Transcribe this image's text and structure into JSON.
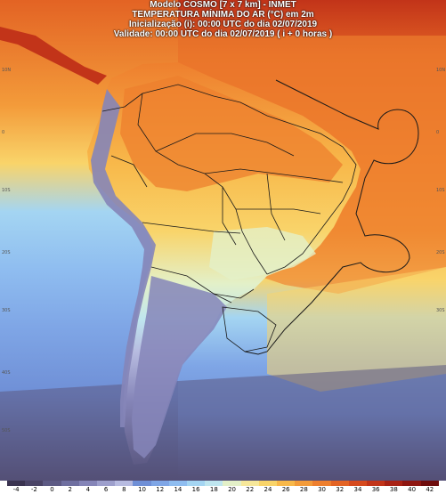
{
  "header": {
    "line1": "Modelo COSMO [7 x 7 km] - INMET",
    "line2": "TEMPERATURA MÍNIMA DO AR (°C) em 2m",
    "line3": "Inicialização (i): 00:00 UTC do dia 02/07/2019",
    "line4": "Validade: 00:00 UTC do dia 02/07/2019 ( i + 0 horas )"
  },
  "colorbar": {
    "ticks": [
      "-4",
      "-2",
      "0",
      "2",
      "4",
      "6",
      "8",
      "10",
      "12",
      "14",
      "16",
      "18",
      "20",
      "22",
      "24",
      "26",
      "28",
      "30",
      "32",
      "34",
      "36",
      "38",
      "40",
      "42"
    ],
    "colors": [
      "#3a3350",
      "#4a4466",
      "#5d5a84",
      "#6f6fa0",
      "#8585b8",
      "#9d9fcc",
      "#b7bbe0",
      "#6f8fd6",
      "#7fa6e6",
      "#8fbdf0",
      "#a4d5f2",
      "#bfe6ef",
      "#e3f0c8",
      "#f6e79a",
      "#f9d46a",
      "#f8b84a",
      "#f39b3a",
      "#ee7f2e",
      "#e36324",
      "#d64a1e",
      "#c23419",
      "#a82215",
      "#8e1611",
      "#6e0c0c"
    ]
  },
  "map": {
    "region": "South America",
    "ocean_warm": "#f39b3a",
    "ocean_hot": "#ee7f2e",
    "ocean_mid": "#f9d46a",
    "ocean_cool": "#a4d5f2",
    "ocean_cold": "#7fa6e6",
    "ocean_colder": "#6f8fd6",
    "ocean_polar": "#5d5a84",
    "land_hot": "#ee7f2e",
    "land_warm": "#f9d46a",
    "land_mild": "#e3f0c8",
    "land_cool": "#8585b8",
    "land_cold": "#5d5a84",
    "boundary_color": "#1a1a1a"
  }
}
